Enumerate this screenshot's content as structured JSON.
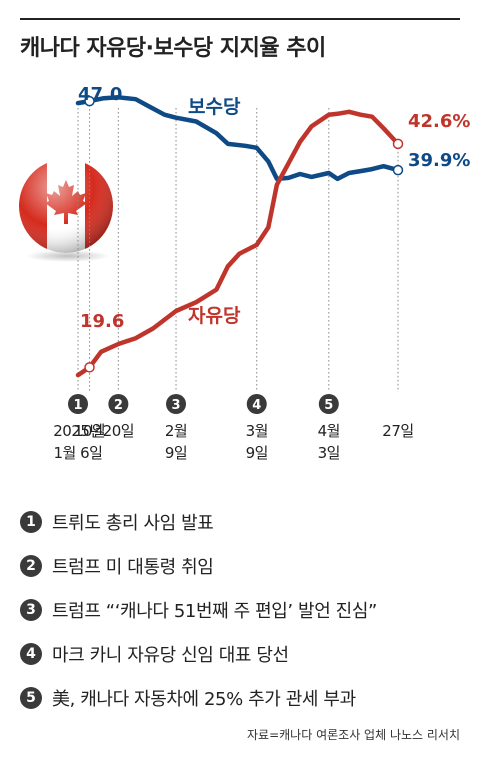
{
  "title": "캐나다 자유당·보수당 지지율 추이",
  "chart_data": {
    "type": "line",
    "title": "캐나다 자유당·보수당 지지율 추이",
    "xlabel": "",
    "ylabel": "",
    "ylim": [
      15,
      50
    ],
    "x_ticks": [
      {
        "num": "1",
        "label": "2025년\n1월 6일",
        "date": "2025-01-06"
      },
      {
        "label": "10일",
        "date": "2025-01-10"
      },
      {
        "num": "2",
        "label": "20일",
        "date": "2025-01-20"
      },
      {
        "num": "3",
        "label": "2월\n9일",
        "date": "2025-02-09"
      },
      {
        "num": "4",
        "label": "3월\n9일",
        "date": "2025-03-09"
      },
      {
        "num": "5",
        "label": "4월\n3일",
        "date": "2025-04-03"
      },
      {
        "label": "27일",
        "date": "2025-04-27"
      }
    ],
    "series": [
      {
        "name": "보수당",
        "color": "#0e4a86",
        "start_label": "47.0",
        "end_label": "39.9%",
        "points": [
          [
            "2025-01-06",
            46.8
          ],
          [
            "2025-01-10",
            47.0
          ],
          [
            "2025-01-15",
            47.3
          ],
          [
            "2025-01-20",
            47.4
          ],
          [
            "2025-01-26",
            47.2
          ],
          [
            "2025-01-31",
            46.4
          ],
          [
            "2025-02-05",
            45.6
          ],
          [
            "2025-02-09",
            45.3
          ],
          [
            "2025-02-16",
            44.9
          ],
          [
            "2025-02-23",
            43.7
          ],
          [
            "2025-02-27",
            42.6
          ],
          [
            "2025-03-05",
            42.4
          ],
          [
            "2025-03-09",
            42.2
          ],
          [
            "2025-03-13",
            40.8
          ],
          [
            "2025-03-16",
            39.0
          ],
          [
            "2025-03-20",
            39.1
          ],
          [
            "2025-03-24",
            39.5
          ],
          [
            "2025-03-28",
            39.2
          ],
          [
            "2025-04-03",
            39.6
          ],
          [
            "2025-04-06",
            39.0
          ],
          [
            "2025-04-10",
            39.6
          ],
          [
            "2025-04-14",
            39.8
          ],
          [
            "2025-04-18",
            40.0
          ],
          [
            "2025-04-22",
            40.3
          ],
          [
            "2025-04-27",
            39.9
          ]
        ]
      },
      {
        "name": "자유당",
        "color": "#c0352b",
        "start_label": "19.6",
        "end_label": "42.6%",
        "points": [
          [
            "2025-01-06",
            18.8
          ],
          [
            "2025-01-10",
            19.6
          ],
          [
            "2025-01-14",
            21.2
          ],
          [
            "2025-01-20",
            22.0
          ],
          [
            "2025-01-26",
            22.6
          ],
          [
            "2025-02-01",
            23.6
          ],
          [
            "2025-02-09",
            25.4
          ],
          [
            "2025-02-16",
            26.3
          ],
          [
            "2025-02-23",
            27.6
          ],
          [
            "2025-02-27",
            30.0
          ],
          [
            "2025-03-03",
            31.3
          ],
          [
            "2025-03-09",
            32.2
          ],
          [
            "2025-03-13",
            34.0
          ],
          [
            "2025-03-16",
            38.4
          ],
          [
            "2025-03-20",
            40.6
          ],
          [
            "2025-03-24",
            42.8
          ],
          [
            "2025-03-28",
            44.4
          ],
          [
            "2025-04-03",
            45.6
          ],
          [
            "2025-04-06",
            45.7
          ],
          [
            "2025-04-10",
            45.9
          ],
          [
            "2025-04-14",
            45.6
          ],
          [
            "2025-04-18",
            45.4
          ],
          [
            "2025-04-22",
            44.2
          ],
          [
            "2025-04-27",
            42.6
          ]
        ]
      }
    ]
  },
  "events": [
    {
      "num": "1",
      "text": "트뤼도 총리 사임 발표"
    },
    {
      "num": "2",
      "text": "트럼프 미 대통령 취임"
    },
    {
      "num": "3",
      "text": "트럼프 “‘캐나다 51번째 주 편입’ 발언 진심”"
    },
    {
      "num": "4",
      "text": "마크 카니 자유당 신임 대표 당선"
    },
    {
      "num": "5",
      "text": "美, 캐나다 자동차에 25% 추가 관세 부과"
    }
  ],
  "source": "자료=캐나다 여론조사 업체 나노스 리서치"
}
